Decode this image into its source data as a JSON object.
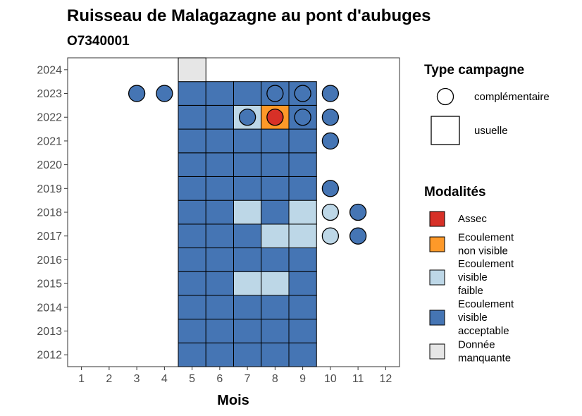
{
  "chart_data": {
    "type": "heatmap",
    "title": "Ruisseau de Malagazagne au pont d'aubuges",
    "subtitle": "O7340001",
    "xlabel": "Mois",
    "ylabel": "",
    "x_ticks": [
      "1",
      "2",
      "3",
      "4",
      "5",
      "6",
      "7",
      "8",
      "9",
      "10",
      "11",
      "12"
    ],
    "y_ticks": [
      "2012",
      "2013",
      "2014",
      "2015",
      "2016",
      "2017",
      "2018",
      "2019",
      "2020",
      "2021",
      "2022",
      "2023",
      "2024"
    ],
    "xlim": [
      0.5,
      12.5
    ],
    "ylim": [
      2011.5,
      2024.5
    ],
    "grid": false,
    "legend_placement": "right",
    "legend_campagne": {
      "title": "Type campagne",
      "items": [
        {
          "shape": "circle",
          "label": "complémentaire"
        },
        {
          "shape": "square",
          "label": "usuelle"
        }
      ]
    },
    "legend_modalites": {
      "title": "Modalités",
      "items": [
        {
          "key": "assec",
          "lines": [
            "Assec"
          ],
          "color": "#d73027"
        },
        {
          "key": "ecoul_nonvis",
          "lines": [
            "Ecoulement",
            "non visible"
          ],
          "color": "#fe9929"
        },
        {
          "key": "ecoul_faible",
          "lines": [
            "Ecoulement",
            "visible",
            "faible"
          ],
          "color": "#bdd7e7"
        },
        {
          "key": "ecoul_accept",
          "lines": [
            "Ecoulement",
            "visible",
            "acceptable"
          ],
          "color": "#4575b4"
        },
        {
          "key": "manquante",
          "lines": [
            "Donnée",
            "manquante"
          ],
          "color": "#e6e6e6"
        }
      ]
    },
    "squares": [
      {
        "year": 2012,
        "month": 5,
        "m": "ecoul_accept"
      },
      {
        "year": 2012,
        "month": 6,
        "m": "ecoul_accept"
      },
      {
        "year": 2012,
        "month": 7,
        "m": "ecoul_accept"
      },
      {
        "year": 2012,
        "month": 8,
        "m": "ecoul_accept"
      },
      {
        "year": 2012,
        "month": 9,
        "m": "ecoul_accept"
      },
      {
        "year": 2013,
        "month": 5,
        "m": "ecoul_accept"
      },
      {
        "year": 2013,
        "month": 6,
        "m": "ecoul_accept"
      },
      {
        "year": 2013,
        "month": 7,
        "m": "ecoul_accept"
      },
      {
        "year": 2013,
        "month": 8,
        "m": "ecoul_accept"
      },
      {
        "year": 2013,
        "month": 9,
        "m": "ecoul_accept"
      },
      {
        "year": 2014,
        "month": 5,
        "m": "ecoul_accept"
      },
      {
        "year": 2014,
        "month": 6,
        "m": "ecoul_accept"
      },
      {
        "year": 2014,
        "month": 7,
        "m": "ecoul_accept"
      },
      {
        "year": 2014,
        "month": 8,
        "m": "ecoul_accept"
      },
      {
        "year": 2014,
        "month": 9,
        "m": "ecoul_accept"
      },
      {
        "year": 2015,
        "month": 5,
        "m": "ecoul_accept"
      },
      {
        "year": 2015,
        "month": 6,
        "m": "ecoul_accept"
      },
      {
        "year": 2015,
        "month": 7,
        "m": "ecoul_faible"
      },
      {
        "year": 2015,
        "month": 8,
        "m": "ecoul_faible"
      },
      {
        "year": 2015,
        "month": 9,
        "m": "ecoul_accept"
      },
      {
        "year": 2016,
        "month": 5,
        "m": "ecoul_accept"
      },
      {
        "year": 2016,
        "month": 6,
        "m": "ecoul_accept"
      },
      {
        "year": 2016,
        "month": 7,
        "m": "ecoul_accept"
      },
      {
        "year": 2016,
        "month": 8,
        "m": "ecoul_accept"
      },
      {
        "year": 2016,
        "month": 9,
        "m": "ecoul_accept"
      },
      {
        "year": 2017,
        "month": 5,
        "m": "ecoul_accept"
      },
      {
        "year": 2017,
        "month": 6,
        "m": "ecoul_accept"
      },
      {
        "year": 2017,
        "month": 7,
        "m": "ecoul_accept"
      },
      {
        "year": 2017,
        "month": 8,
        "m": "ecoul_faible"
      },
      {
        "year": 2017,
        "month": 9,
        "m": "ecoul_faible"
      },
      {
        "year": 2018,
        "month": 5,
        "m": "ecoul_accept"
      },
      {
        "year": 2018,
        "month": 6,
        "m": "ecoul_accept"
      },
      {
        "year": 2018,
        "month": 7,
        "m": "ecoul_faible"
      },
      {
        "year": 2018,
        "month": 8,
        "m": "ecoul_accept"
      },
      {
        "year": 2018,
        "month": 9,
        "m": "ecoul_faible"
      },
      {
        "year": 2019,
        "month": 5,
        "m": "ecoul_accept"
      },
      {
        "year": 2019,
        "month": 6,
        "m": "ecoul_accept"
      },
      {
        "year": 2019,
        "month": 7,
        "m": "ecoul_accept"
      },
      {
        "year": 2019,
        "month": 8,
        "m": "ecoul_accept"
      },
      {
        "year": 2019,
        "month": 9,
        "m": "ecoul_accept"
      },
      {
        "year": 2020,
        "month": 5,
        "m": "ecoul_accept"
      },
      {
        "year": 2020,
        "month": 6,
        "m": "ecoul_accept"
      },
      {
        "year": 2020,
        "month": 7,
        "m": "ecoul_accept"
      },
      {
        "year": 2020,
        "month": 8,
        "m": "ecoul_accept"
      },
      {
        "year": 2020,
        "month": 9,
        "m": "ecoul_accept"
      },
      {
        "year": 2021,
        "month": 5,
        "m": "ecoul_accept"
      },
      {
        "year": 2021,
        "month": 6,
        "m": "ecoul_accept"
      },
      {
        "year": 2021,
        "month": 7,
        "m": "ecoul_accept"
      },
      {
        "year": 2021,
        "month": 8,
        "m": "ecoul_accept"
      },
      {
        "year": 2021,
        "month": 9,
        "m": "ecoul_accept"
      },
      {
        "year": 2022,
        "month": 5,
        "m": "ecoul_accept"
      },
      {
        "year": 2022,
        "month": 6,
        "m": "ecoul_accept"
      },
      {
        "year": 2022,
        "month": 7,
        "m": "ecoul_faible"
      },
      {
        "year": 2022,
        "month": 8,
        "m": "ecoul_nonvis"
      },
      {
        "year": 2022,
        "month": 9,
        "m": "ecoul_accept"
      },
      {
        "year": 2023,
        "month": 5,
        "m": "ecoul_accept"
      },
      {
        "year": 2023,
        "month": 6,
        "m": "ecoul_accept"
      },
      {
        "year": 2023,
        "month": 7,
        "m": "ecoul_accept"
      },
      {
        "year": 2023,
        "month": 8,
        "m": "ecoul_accept"
      },
      {
        "year": 2023,
        "month": 9,
        "m": "ecoul_accept"
      },
      {
        "year": 2024,
        "month": 5,
        "m": "manquante"
      }
    ],
    "circles": [
      {
        "year": 2023,
        "month": 3,
        "m": "ecoul_accept"
      },
      {
        "year": 2023,
        "month": 4,
        "m": "ecoul_accept"
      },
      {
        "year": 2023,
        "month": 8,
        "m": "ecoul_accept"
      },
      {
        "year": 2023,
        "month": 9,
        "m": "ecoul_accept"
      },
      {
        "year": 2023,
        "month": 10,
        "m": "ecoul_accept"
      },
      {
        "year": 2022,
        "month": 7,
        "m": "ecoul_accept"
      },
      {
        "year": 2022,
        "month": 8,
        "m": "assec"
      },
      {
        "year": 2022,
        "month": 9,
        "m": "ecoul_accept"
      },
      {
        "year": 2022,
        "month": 10,
        "m": "ecoul_accept"
      },
      {
        "year": 2021,
        "month": 10,
        "m": "ecoul_accept"
      },
      {
        "year": 2019,
        "month": 10,
        "m": "ecoul_accept"
      },
      {
        "year": 2018,
        "month": 10,
        "m": "ecoul_faible"
      },
      {
        "year": 2018,
        "month": 11,
        "m": "ecoul_accept"
      },
      {
        "year": 2017,
        "month": 10,
        "m": "ecoul_faible"
      },
      {
        "year": 2017,
        "month": 11,
        "m": "ecoul_accept"
      }
    ]
  }
}
